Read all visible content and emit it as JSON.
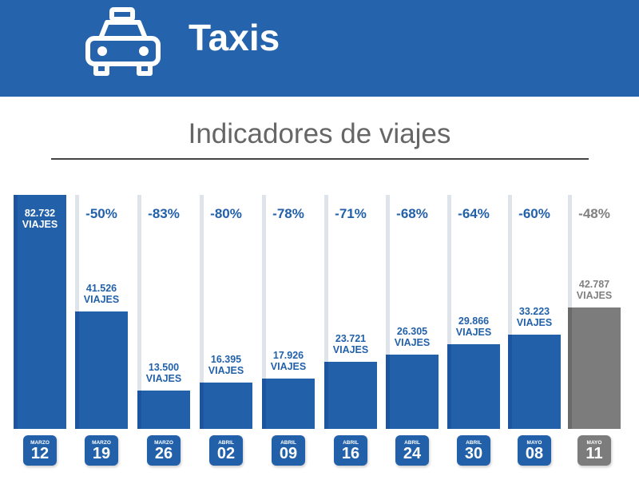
{
  "header": {
    "title": "Taxis",
    "icon": "taxi-icon"
  },
  "chart_data": {
    "type": "bar",
    "title": "Indicadores de viajes",
    "unit_label": "VIAJES",
    "categories": [
      {
        "month": "MARZO",
        "day": "12"
      },
      {
        "month": "MARZO",
        "day": "19"
      },
      {
        "month": "MARZO",
        "day": "26"
      },
      {
        "month": "ABRIL",
        "day": "02"
      },
      {
        "month": "ABRIL",
        "day": "09"
      },
      {
        "month": "ABRIL",
        "day": "16"
      },
      {
        "month": "ABRIL",
        "day": "24"
      },
      {
        "month": "ABRIL",
        "day": "30"
      },
      {
        "month": "MAYO",
        "day": "08"
      },
      {
        "month": "MAYO",
        "day": "11"
      }
    ],
    "values": [
      82732,
      41526,
      13500,
      16395,
      17926,
      23721,
      26305,
      29866,
      33223,
      42787
    ],
    "value_labels": [
      "82.732",
      "41.526",
      "13.500",
      "16.395",
      "17.926",
      "23.721",
      "26.305",
      "29.866",
      "33.223",
      "42.787"
    ],
    "change_labels": [
      "",
      "-50%",
      "-83%",
      "-80%",
      "-78%",
      "-71%",
      "-68%",
      "-64%",
      "-60%",
      "-48%"
    ],
    "highlight_last": true,
    "colors": {
      "primary": "#2261aa",
      "last": "#7c7c7c",
      "header": "#2563ad"
    },
    "ylim": [
      0,
      82732
    ]
  }
}
